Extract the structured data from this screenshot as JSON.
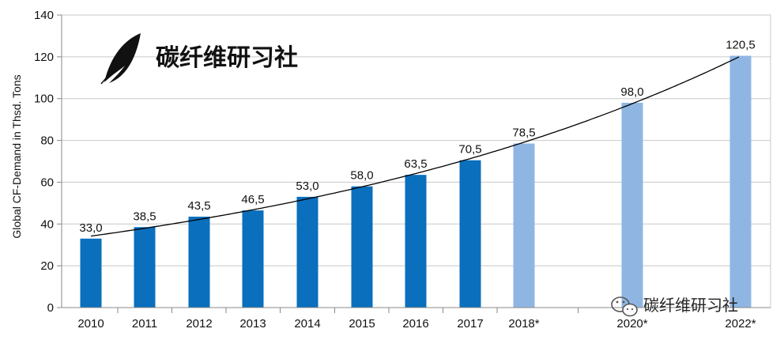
{
  "brand": {
    "text": "碳纤维研习社"
  },
  "watermark": {
    "text": "碳纤维研习社"
  },
  "colors": {
    "actual": "#0a6fbd",
    "forecast": "#8fb6e3",
    "grid": "#c8c8c8",
    "trend": "#000000"
  },
  "chart_data": {
    "type": "bar",
    "title": "",
    "xlabel": "",
    "ylabel": "Global CF-Demand in Thsd. Tons",
    "ylim": [
      0,
      140
    ],
    "yticks": [
      0,
      20,
      40,
      60,
      80,
      100,
      120,
      140
    ],
    "grid": true,
    "trendline": true,
    "categories": [
      "2010",
      "2011",
      "2012",
      "2013",
      "2014",
      "2015",
      "2016",
      "2017",
      "2018*",
      "2020*",
      "2022*"
    ],
    "values": [
      33.0,
      38.5,
      43.5,
      46.5,
      53.0,
      58.0,
      63.5,
      70.5,
      78.5,
      98.0,
      120.5
    ],
    "data_labels": [
      "33,0",
      "38,5",
      "43,5",
      "46,5",
      "53,0",
      "58,0",
      "63,5",
      "70,5",
      "78,5",
      "98,0",
      "120,5"
    ],
    "forecast": [
      false,
      false,
      false,
      false,
      false,
      false,
      false,
      false,
      true,
      true,
      true
    ]
  }
}
